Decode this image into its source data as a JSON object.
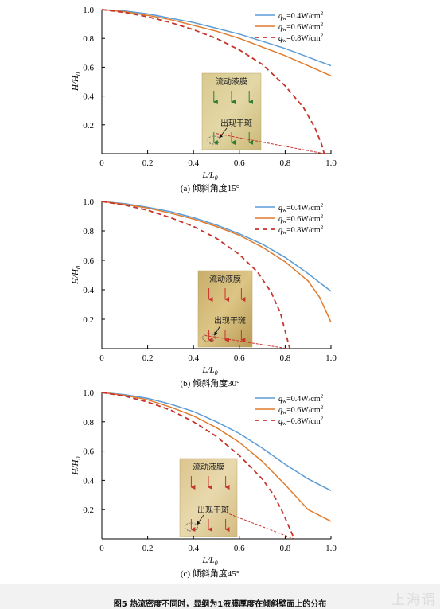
{
  "chart_data": [
    {
      "type": "line",
      "caption": "(a) 倾斜角度15°",
      "xlabel": "L/L",
      "xlabel_sub": "0",
      "ylabel": "H/H",
      "ylabel_sub": "0",
      "xlim": [
        0,
        1.0
      ],
      "ylim": [
        0,
        1.0
      ],
      "x_ticks": [
        "0",
        "0.2",
        "0.4",
        "0.6",
        "0.8",
        "1.0"
      ],
      "y_ticks": [
        "0.2",
        "0.4",
        "0.6",
        "0.8",
        "1.0"
      ],
      "legend_position": "top-right",
      "series": [
        {
          "name": "q_w=0.4W/cm²",
          "label_main": "q",
          "label_sub": "w",
          "label_rest": "=0.4W/cm",
          "label_sup": "2",
          "color": "#5b9bd5",
          "style": "solid",
          "x": [
            0,
            0.1,
            0.2,
            0.3,
            0.4,
            0.5,
            0.6,
            0.7,
            0.8,
            0.9,
            1.0
          ],
          "y": [
            1.0,
            0.99,
            0.97,
            0.94,
            0.91,
            0.87,
            0.83,
            0.78,
            0.73,
            0.67,
            0.61
          ]
        },
        {
          "name": "q_w=0.6W/cm²",
          "label_main": "q",
          "label_sub": "w",
          "label_rest": "=0.6W/cm",
          "label_sup": "2",
          "color": "#e07b2e",
          "style": "solid",
          "x": [
            0,
            0.1,
            0.2,
            0.3,
            0.4,
            0.5,
            0.6,
            0.7,
            0.8,
            0.9,
            1.0
          ],
          "y": [
            1.0,
            0.985,
            0.96,
            0.93,
            0.89,
            0.85,
            0.8,
            0.74,
            0.68,
            0.61,
            0.54
          ]
        },
        {
          "name": "q_w=0.8W/cm²",
          "label_main": "q",
          "label_sub": "w",
          "label_rest": "=0.8W/cm",
          "label_sup": "2",
          "color": "#c8332c",
          "style": "dashed",
          "x": [
            0,
            0.1,
            0.2,
            0.3,
            0.4,
            0.5,
            0.6,
            0.7,
            0.8,
            0.88,
            0.93,
            0.96,
            0.97
          ],
          "y": [
            1.0,
            0.98,
            0.95,
            0.91,
            0.86,
            0.8,
            0.72,
            0.62,
            0.47,
            0.32,
            0.18,
            0.06,
            0.0
          ]
        }
      ],
      "inset": {
        "label_top": "流动液膜",
        "label_spot": "出现干斑",
        "arrow_color": "#2e7d32",
        "film_tail": [
          [
            0.5,
            0.14
          ],
          [
            0.97,
            0.0
          ]
        ]
      }
    },
    {
      "type": "line",
      "caption": "(b) 倾斜角度30°",
      "xlabel": "L/L",
      "xlabel_sub": "0",
      "ylabel": "H/H",
      "ylabel_sub": "0",
      "xlim": [
        0,
        1.0
      ],
      "ylim": [
        0,
        1.0
      ],
      "x_ticks": [
        "0",
        "0.2",
        "0.4",
        "0.6",
        "0.8",
        "1.0"
      ],
      "y_ticks": [
        "0.2",
        "0.4",
        "0.6",
        "0.8",
        "1.0"
      ],
      "legend_position": "top-right",
      "series": [
        {
          "name": "q_w=0.4W/cm²",
          "label_main": "q",
          "label_sub": "w",
          "label_rest": "=0.4W/cm",
          "label_sup": "2",
          "color": "#5b9bd5",
          "style": "solid",
          "x": [
            0,
            0.1,
            0.2,
            0.3,
            0.4,
            0.5,
            0.6,
            0.7,
            0.8,
            0.9,
            0.95,
            1.0
          ],
          "y": [
            1.0,
            0.985,
            0.96,
            0.93,
            0.89,
            0.84,
            0.78,
            0.71,
            0.62,
            0.51,
            0.45,
            0.39
          ]
        },
        {
          "name": "q_w=0.6W/cm²",
          "label_main": "q",
          "label_sub": "w",
          "label_rest": "=0.6W/cm",
          "label_sup": "2",
          "color": "#e07b2e",
          "style": "solid",
          "x": [
            0,
            0.1,
            0.2,
            0.3,
            0.4,
            0.5,
            0.6,
            0.7,
            0.8,
            0.9,
            0.95,
            1.0
          ],
          "y": [
            1.0,
            0.98,
            0.955,
            0.92,
            0.88,
            0.83,
            0.77,
            0.69,
            0.59,
            0.46,
            0.35,
            0.18
          ]
        },
        {
          "name": "q_w=0.8W/cm²",
          "label_main": "q",
          "label_sub": "w",
          "label_rest": "=0.8W/cm",
          "label_sup": "2",
          "color": "#c8332c",
          "style": "dashed",
          "x": [
            0,
            0.1,
            0.2,
            0.3,
            0.4,
            0.5,
            0.6,
            0.68,
            0.74,
            0.78,
            0.8,
            0.82
          ],
          "y": [
            1.0,
            0.975,
            0.94,
            0.89,
            0.83,
            0.75,
            0.64,
            0.52,
            0.38,
            0.24,
            0.12,
            0.0
          ]
        }
      ],
      "inset": {
        "label_top": "流动液膜",
        "label_spot": "出现干斑",
        "arrow_color": "#c8332c",
        "film_tail": [
          [
            0.45,
            0.09
          ],
          [
            0.81,
            0.0
          ]
        ]
      }
    },
    {
      "type": "line",
      "caption": "(c) 倾斜角度45°",
      "xlabel": "L/L",
      "xlabel_sub": "0",
      "ylabel": "H/H",
      "ylabel_sub": "0",
      "xlim": [
        0,
        1.0
      ],
      "ylim": [
        0,
        1.0
      ],
      "x_ticks": [
        "0",
        "0.2",
        "0.4",
        "0.6",
        "0.8",
        "1.0"
      ],
      "y_ticks": [
        "0.2",
        "0.4",
        "0.6",
        "0.8",
        "1.0"
      ],
      "legend_position": "top-right",
      "series": [
        {
          "name": "q_w=0.4W/cm²",
          "label_main": "q",
          "label_sub": "w",
          "label_rest": "=0.4W/cm",
          "label_sup": "2",
          "color": "#5b9bd5",
          "style": "solid",
          "x": [
            0,
            0.1,
            0.2,
            0.3,
            0.4,
            0.5,
            0.6,
            0.7,
            0.8,
            0.9,
            1.0
          ],
          "y": [
            1.0,
            0.985,
            0.96,
            0.92,
            0.87,
            0.8,
            0.72,
            0.62,
            0.51,
            0.41,
            0.33
          ]
        },
        {
          "name": "q_w=0.6W/cm²",
          "label_main": "q",
          "label_sub": "w",
          "label_rest": "=0.6W/cm",
          "label_sup": "2",
          "color": "#e07b2e",
          "style": "solid",
          "x": [
            0,
            0.1,
            0.2,
            0.3,
            0.4,
            0.5,
            0.6,
            0.7,
            0.8,
            0.9,
            1.0
          ],
          "y": [
            1.0,
            0.98,
            0.95,
            0.9,
            0.84,
            0.76,
            0.66,
            0.53,
            0.37,
            0.2,
            0.12
          ]
        },
        {
          "name": "q_w=0.8W/cm²",
          "label_main": "q",
          "label_sub": "w",
          "label_rest": "=0.8W/cm",
          "label_sup": "2",
          "color": "#c8332c",
          "style": "dashed",
          "x": [
            0,
            0.1,
            0.2,
            0.3,
            0.4,
            0.5,
            0.6,
            0.7,
            0.75,
            0.79,
            0.82,
            0.84
          ],
          "y": [
            1.0,
            0.975,
            0.935,
            0.88,
            0.8,
            0.7,
            0.57,
            0.41,
            0.3,
            0.18,
            0.07,
            0.0
          ]
        }
      ],
      "inset": {
        "label_top": "流动液膜",
        "label_spot": "出现干斑",
        "arrow_color": "#c8332c",
        "film_tail": [
          [
            0.54,
            0.18
          ],
          [
            0.84,
            0.0
          ]
        ]
      }
    }
  ],
  "footer": {
    "caption": "图5   热流密度不同时，显纲为1液膜厚度在倾斜壁面上的分布",
    "watermark": "上海谓"
  }
}
